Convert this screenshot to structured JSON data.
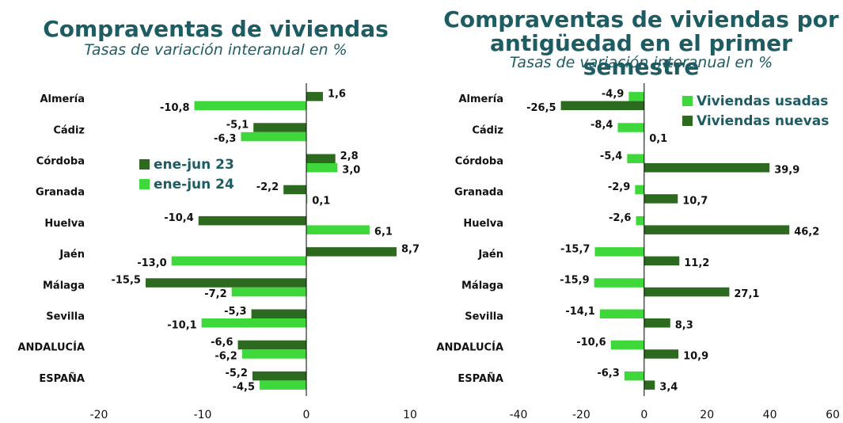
{
  "chart_data": [
    {
      "type": "barh",
      "title": "Compraventas de viviendas",
      "subtitle": "Tasas de variación interanual en %",
      "categories": [
        "Almería",
        "Cádiz",
        "Córdoba",
        "Granada",
        "Huelva",
        "Jaén",
        "Málaga",
        "Sevilla",
        "ANDALUCÍA",
        "ESPAÑA"
      ],
      "series": [
        {
          "name": "ene-jun 23",
          "color": "#2b6a1f",
          "values": [
            1.6,
            -5.1,
            2.8,
            -2.2,
            -10.4,
            8.7,
            -15.5,
            -5.3,
            -6.6,
            -5.2
          ],
          "value_labels": [
            "1,6",
            "-5,1",
            "2,8",
            "-2,2",
            "-10,4",
            "8,7",
            "-15,5",
            "-5,3",
            "-6,6",
            "-5,2"
          ]
        },
        {
          "name": "ene-jun 24",
          "color": "#3fd83a",
          "values": [
            -10.8,
            -6.3,
            3.0,
            0.1,
            6.1,
            -13.0,
            -7.2,
            -10.1,
            -6.2,
            -4.5
          ],
          "value_labels": [
            "-10,8",
            "-6,3",
            "3,0",
            "0,1",
            "6,1",
            "-13,0",
            "-7,2",
            "-10,1",
            "-6,2",
            "-4,5"
          ]
        }
      ],
      "xlim": [
        -20,
        10
      ],
      "xticks": [
        -20,
        -10,
        0,
        10
      ],
      "legend": "center left"
    },
    {
      "type": "barh",
      "title": "Compraventas de viviendas por antigüedad en el primer semestre",
      "subtitle": "Tasas de variación interanual en %",
      "categories": [
        "Almería",
        "Cádiz",
        "Córdoba",
        "Granada",
        "Huelva",
        "Jaén",
        "Málaga",
        "Sevilla",
        "ANDALUCÍA",
        "ESPAÑA"
      ],
      "series": [
        {
          "name": "Viviendas usadas",
          "color": "#3fd83a",
          "values": [
            -4.9,
            -8.4,
            -5.4,
            -2.9,
            -2.6,
            -15.7,
            -15.9,
            -14.1,
            -10.6,
            -6.3
          ],
          "value_labels": [
            "-4,9",
            "-8,4",
            "-5,4",
            "-2,9",
            "-2,6",
            "-15,7",
            "-15,9",
            "-14,1",
            "-10,6",
            "-6,3"
          ]
        },
        {
          "name": "Viviendas nuevas",
          "color": "#2b6a1f",
          "values": [
            -26.5,
            0.1,
            39.9,
            10.7,
            46.2,
            11.2,
            27.1,
            8.3,
            10.9,
            3.4
          ],
          "value_labels": [
            "-26,5",
            "0,1",
            "39,9",
            "10,7",
            "46,2",
            "11,2",
            "27,1",
            "8,3",
            "10,9",
            "3,4"
          ]
        }
      ],
      "xlim": [
        -40,
        60
      ],
      "xticks": [
        -40,
        -20,
        0,
        20,
        40,
        60
      ],
      "legend": "upper right"
    }
  ]
}
